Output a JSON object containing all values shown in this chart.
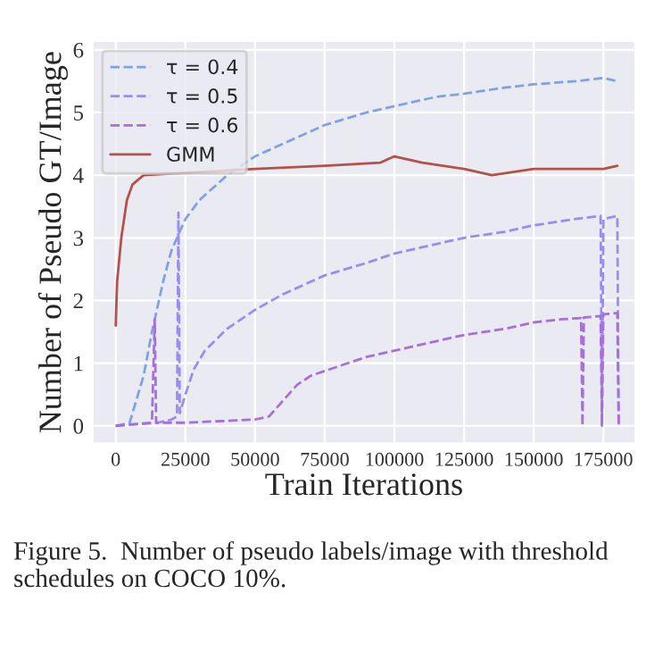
{
  "chart_data": {
    "type": "line",
    "xlabel": "Train Iterations",
    "ylabel": "Number of Pseudo GT/Image",
    "xlim": [
      -8300,
      186500
    ],
    "ylim": [
      -0.28,
      6.14
    ],
    "xticks": [
      0,
      25000,
      50000,
      75000,
      100000,
      125000,
      150000,
      175000
    ],
    "yticks": [
      0,
      1,
      2,
      3,
      4,
      5,
      6
    ],
    "grid": true,
    "legend": "top left",
    "annotations": [
      "Figure 5.  Number of pseudo labels/image with threshold schedules on COCO 10%."
    ],
    "series": [
      {
        "name": "τ = 0.4",
        "color": "#7fa3e0",
        "line_style": "dashed",
        "x": [
          0,
          5000,
          10000,
          13000,
          17000,
          20000,
          25000,
          30000,
          40000,
          50000,
          60000,
          75000,
          90000,
          100000,
          115000,
          125000,
          140000,
          150000,
          165000,
          175000,
          180000
        ],
        "values": [
          0,
          0.05,
          0.8,
          1.5,
          2.3,
          2.8,
          3.3,
          3.6,
          4.0,
          4.3,
          4.5,
          4.8,
          5.0,
          5.1,
          5.25,
          5.3,
          5.4,
          5.45,
          5.5,
          5.55,
          5.5
        ]
      },
      {
        "name": "τ = 0.5",
        "color": "#9b8cf0",
        "line_style": "dashed",
        "x": [
          0,
          15000,
          20000,
          22000,
          22500,
          23000,
          25000,
          28000,
          32000,
          40000,
          50000,
          60000,
          75000,
          90000,
          100000,
          115000,
          125000,
          140000,
          150000,
          165000,
          174000,
          174500,
          175000,
          180000,
          180500
        ],
        "values": [
          0,
          0.05,
          0.1,
          0.15,
          3.4,
          0.2,
          0.5,
          0.9,
          1.2,
          1.55,
          1.85,
          2.1,
          2.4,
          2.6,
          2.75,
          2.9,
          3.0,
          3.1,
          3.2,
          3.3,
          3.35,
          0,
          3.3,
          3.35,
          0
        ]
      },
      {
        "name": "τ = 0.6",
        "color": "#a770d8",
        "line_style": "dashed",
        "x": [
          0,
          13000,
          14000,
          14500,
          25000,
          40000,
          50000,
          55000,
          60000,
          65000,
          70000,
          80000,
          90000,
          100000,
          115000,
          125000,
          140000,
          150000,
          160000,
          167000,
          167500,
          168000,
          174000,
          174500,
          175000,
          180000,
          180500
        ],
        "values": [
          0,
          0.05,
          1.7,
          0.05,
          0.05,
          0.08,
          0.1,
          0.15,
          0.4,
          0.65,
          0.8,
          0.95,
          1.1,
          1.2,
          1.35,
          1.45,
          1.55,
          1.65,
          1.7,
          1.72,
          0,
          1.73,
          1.75,
          0,
          1.78,
          1.8,
          0
        ]
      },
      {
        "name": "GMM",
        "color": "#b5504a",
        "line_style": "solid",
        "x": [
          0,
          500,
          2000,
          4000,
          6000,
          10000,
          50000,
          75000,
          95000,
          100000,
          110000,
          125000,
          135000,
          150000,
          175000,
          180000
        ],
        "values": [
          1.6,
          2.3,
          3.0,
          3.6,
          3.85,
          4.0,
          4.1,
          4.15,
          4.2,
          4.3,
          4.2,
          4.1,
          4.0,
          4.1,
          4.1,
          4.15
        ]
      }
    ]
  }
}
